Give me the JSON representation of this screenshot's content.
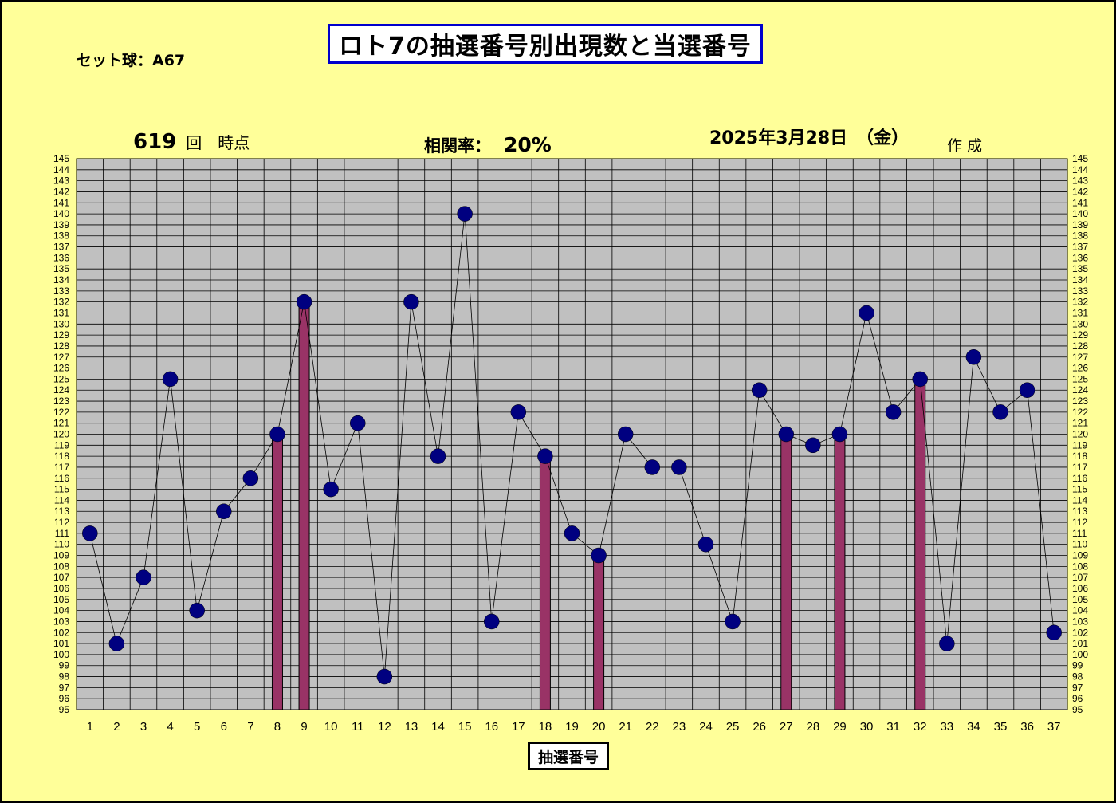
{
  "header": {
    "title": "ロト7の抽選番号別出現数と当選番号",
    "set_ball": "セット球：A67",
    "draw_number": "619",
    "draw_suffix": "回　時点",
    "correlation_label": "相関率：",
    "correlation_value": "20%",
    "date": "2025年3月28日　（金）",
    "created": "作成"
  },
  "colors": {
    "background": "#ffff99",
    "plot_area": "#c0c0c0",
    "bar": "#993366",
    "marker": "#000080",
    "title_border": "#0000cc"
  },
  "chart_data": {
    "type": "bar",
    "xlabel": "抽選番号",
    "ylim": [
      95,
      145
    ],
    "categories": [
      "1",
      "2",
      "3",
      "4",
      "5",
      "6",
      "7",
      "8",
      "9",
      "10",
      "11",
      "12",
      "13",
      "14",
      "15",
      "16",
      "17",
      "18",
      "19",
      "20",
      "21",
      "22",
      "23",
      "24",
      "25",
      "26",
      "27",
      "28",
      "29",
      "30",
      "31",
      "32",
      "33",
      "34",
      "35",
      "36",
      "37"
    ],
    "series": [
      {
        "type": "line",
        "values": [
          111,
          101,
          107,
          125,
          104,
          113,
          116,
          120,
          132,
          115,
          121,
          98,
          132,
          118,
          140,
          103,
          122,
          118,
          111,
          109,
          120,
          117,
          117,
          110,
          103,
          124,
          120,
          119,
          120,
          131,
          122,
          125,
          101,
          127,
          122,
          124,
          102
        ]
      },
      {
        "type": "bar",
        "values": [
          null,
          null,
          null,
          null,
          null,
          null,
          null,
          120,
          132,
          null,
          null,
          null,
          null,
          null,
          null,
          null,
          null,
          118,
          null,
          109,
          null,
          null,
          null,
          null,
          null,
          null,
          120,
          null,
          120,
          null,
          null,
          125,
          null,
          null,
          null,
          null,
          null
        ]
      }
    ],
    "grid": true
  }
}
